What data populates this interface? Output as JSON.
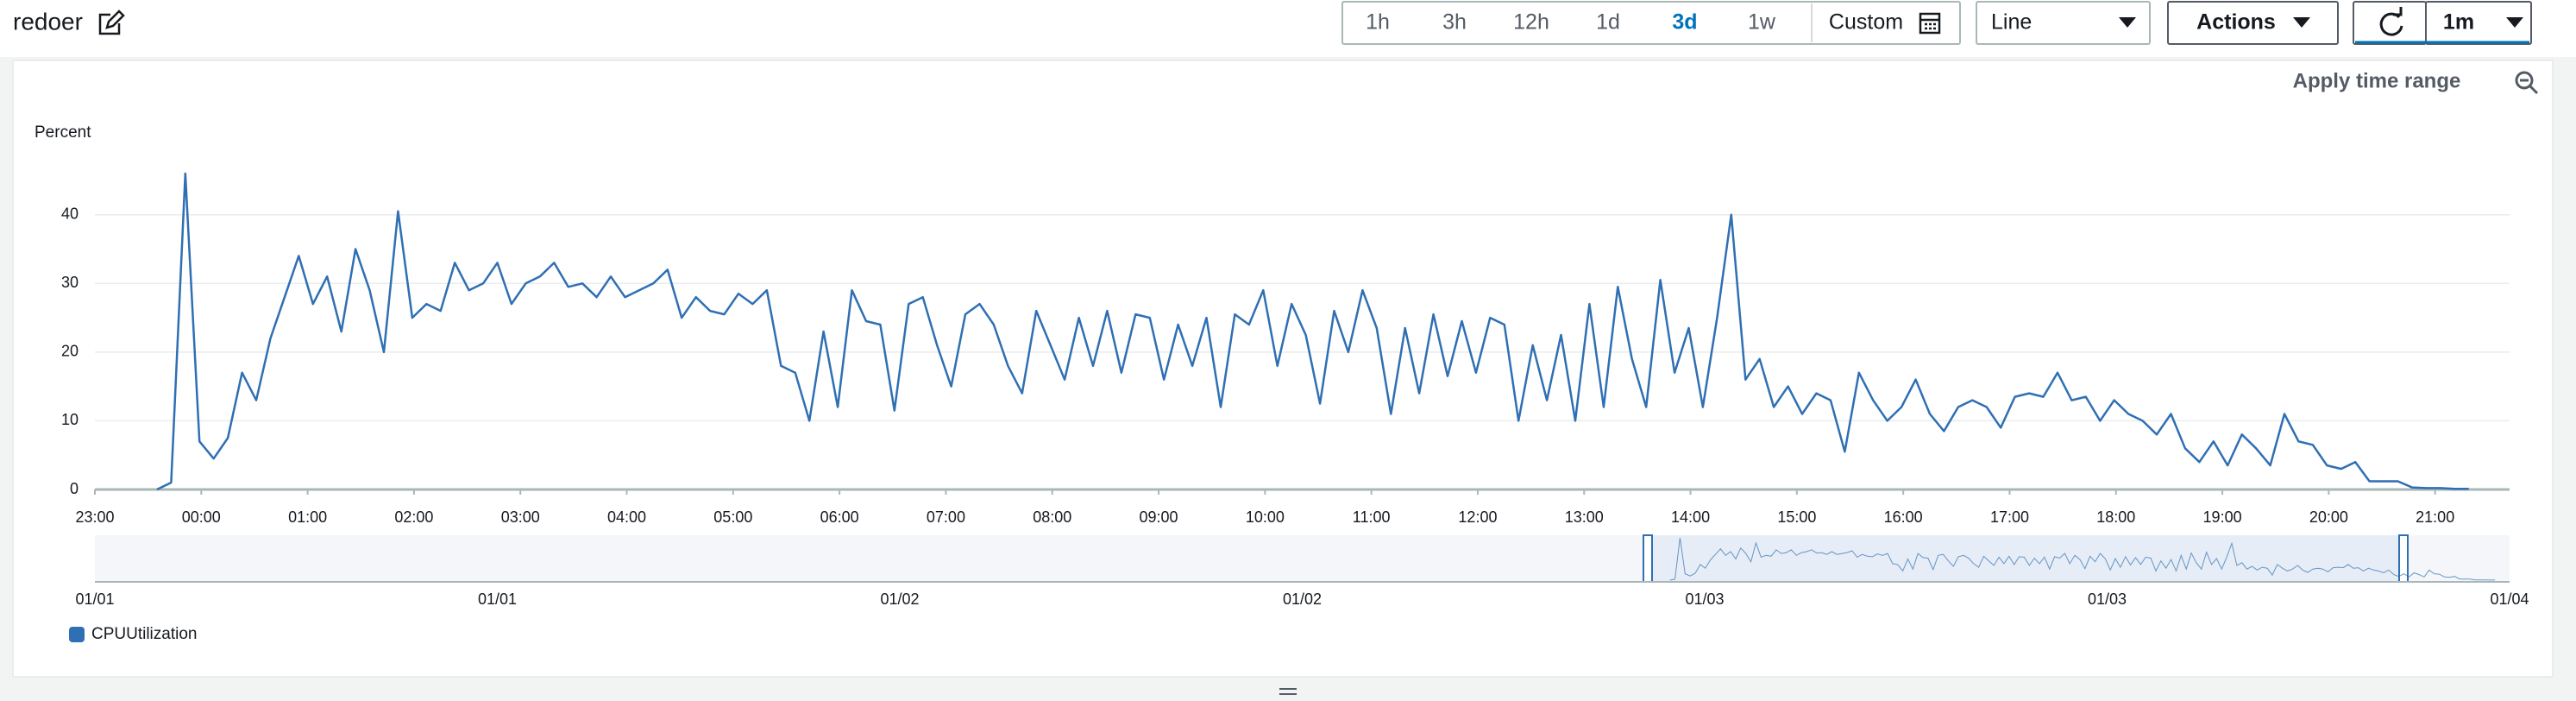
{
  "header": {
    "title": "redoer"
  },
  "toolbar": {
    "time_ranges": [
      "1h",
      "3h",
      "12h",
      "1d",
      "3d",
      "1w"
    ],
    "active_range": "3d",
    "custom": "Custom",
    "chart_type": "Line",
    "actions": "Actions",
    "refresh_interval": "1m"
  },
  "panel": {
    "apply_time_range": "Apply time range"
  },
  "chart_data": {
    "type": "line",
    "y_label": "Percent",
    "x": [
      35,
      43,
      51,
      59,
      67,
      75,
      83,
      91,
      99,
      107,
      115,
      123,
      131,
      139,
      147,
      155,
      163,
      171,
      179,
      187,
      195,
      203,
      211,
      219,
      227,
      235,
      243,
      251,
      259,
      267,
      275,
      283,
      291,
      299,
      307,
      315,
      323,
      331,
      339,
      347,
      355,
      363,
      371,
      379,
      387,
      395,
      403,
      411,
      419,
      427,
      435,
      443,
      451,
      459,
      467,
      475,
      483,
      491,
      499,
      507,
      515,
      523,
      531,
      539,
      547,
      555,
      563,
      571,
      579,
      587,
      595,
      603,
      611,
      619,
      627,
      635,
      643,
      651,
      659,
      667,
      675,
      683,
      691,
      699,
      707,
      715,
      723,
      731,
      739,
      747,
      755,
      763,
      771,
      779,
      787,
      795,
      803,
      811,
      819,
      827,
      835,
      843,
      851,
      859,
      867,
      875,
      883,
      891,
      899,
      907,
      915,
      923,
      931,
      939,
      947,
      955,
      963,
      971,
      979,
      987,
      995,
      1003,
      1011,
      1019,
      1027,
      1035,
      1043,
      1051,
      1059,
      1067,
      1075,
      1083,
      1091,
      1099,
      1107,
      1115,
      1123,
      1131,
      1139,
      1147,
      1155,
      1163,
      1171,
      1179,
      1187,
      1195,
      1203,
      1211,
      1219,
      1227,
      1235,
      1243,
      1251,
      1259,
      1267,
      1275,
      1283,
      1291,
      1299,
      1307,
      1315,
      1323,
      1331,
      1339
    ],
    "series": [
      {
        "name": "CPUUtilization",
        "color": "#2f6fb3",
        "values": [
          0,
          1,
          46,
          7,
          4.5,
          7.5,
          17,
          13,
          22,
          28,
          34,
          27,
          31,
          23,
          35,
          29,
          20,
          40.5,
          25,
          27,
          26,
          33,
          29,
          30,
          33,
          27,
          30,
          31,
          33,
          29.5,
          30,
          28,
          31,
          28,
          29,
          30,
          32,
          25,
          28,
          26,
          25.5,
          28.5,
          27,
          29,
          18,
          17,
          10,
          23,
          12,
          29,
          24.5,
          24,
          11.5,
          27,
          28,
          21,
          15,
          25.5,
          27,
          24,
          18,
          14,
          26,
          21,
          16,
          25,
          18,
          26,
          17,
          25.5,
          25,
          16,
          24,
          18,
          25,
          12,
          25.5,
          24,
          29,
          18,
          27,
          22.5,
          12.5,
          26,
          20,
          29,
          23.5,
          11,
          23.5,
          14,
          25.5,
          16.5,
          24.5,
          17,
          25,
          24,
          10,
          21,
          13,
          22.5,
          10,
          27,
          12,
          29.5,
          19,
          12,
          30.5,
          17,
          23.5,
          12,
          25,
          40,
          16,
          19,
          12,
          15,
          11,
          14,
          13,
          5.5,
          17,
          13,
          10,
          12,
          16,
          11,
          8.5,
          12,
          13,
          12,
          9,
          13.5,
          14,
          13.5,
          17,
          13,
          13.5,
          10,
          13,
          11,
          10,
          8,
          11,
          6,
          4,
          7,
          3.5,
          8,
          6,
          3.5,
          11,
          7,
          6.5,
          3.5,
          3,
          4,
          1.2,
          1.2,
          1.2,
          0.3,
          0.2,
          0.2,
          0.1,
          0.1
        ]
      }
    ],
    "xlim": [
      0,
      1362
    ],
    "ylim": [
      0,
      47
    ],
    "xticks": [
      {
        "value": 0,
        "label": "23:00"
      },
      {
        "value": 60,
        "label": "00:00"
      },
      {
        "value": 120,
        "label": "01:00"
      },
      {
        "value": 180,
        "label": "02:00"
      },
      {
        "value": 240,
        "label": "03:00"
      },
      {
        "value": 300,
        "label": "04:00"
      },
      {
        "value": 360,
        "label": "05:00"
      },
      {
        "value": 420,
        "label": "06:00"
      },
      {
        "value": 480,
        "label": "07:00"
      },
      {
        "value": 540,
        "label": "08:00"
      },
      {
        "value": 600,
        "label": "09:00"
      },
      {
        "value": 660,
        "label": "10:00"
      },
      {
        "value": 720,
        "label": "11:00"
      },
      {
        "value": 780,
        "label": "12:00"
      },
      {
        "value": 840,
        "label": "13:00"
      },
      {
        "value": 900,
        "label": "14:00"
      },
      {
        "value": 960,
        "label": "15:00"
      },
      {
        "value": 1020,
        "label": "16:00"
      },
      {
        "value": 1080,
        "label": "17:00"
      },
      {
        "value": 1140,
        "label": "18:00"
      },
      {
        "value": 1200,
        "label": "19:00"
      },
      {
        "value": 1260,
        "label": "20:00"
      },
      {
        "value": 1320,
        "label": "21:00"
      }
    ],
    "yticks": [
      0,
      10,
      20,
      30,
      40
    ],
    "grid": true
  },
  "navigator": {
    "labels": [
      "01/01",
      "01/01",
      "01/02",
      "01/02",
      "01/03",
      "01/03",
      "01/04"
    ]
  }
}
